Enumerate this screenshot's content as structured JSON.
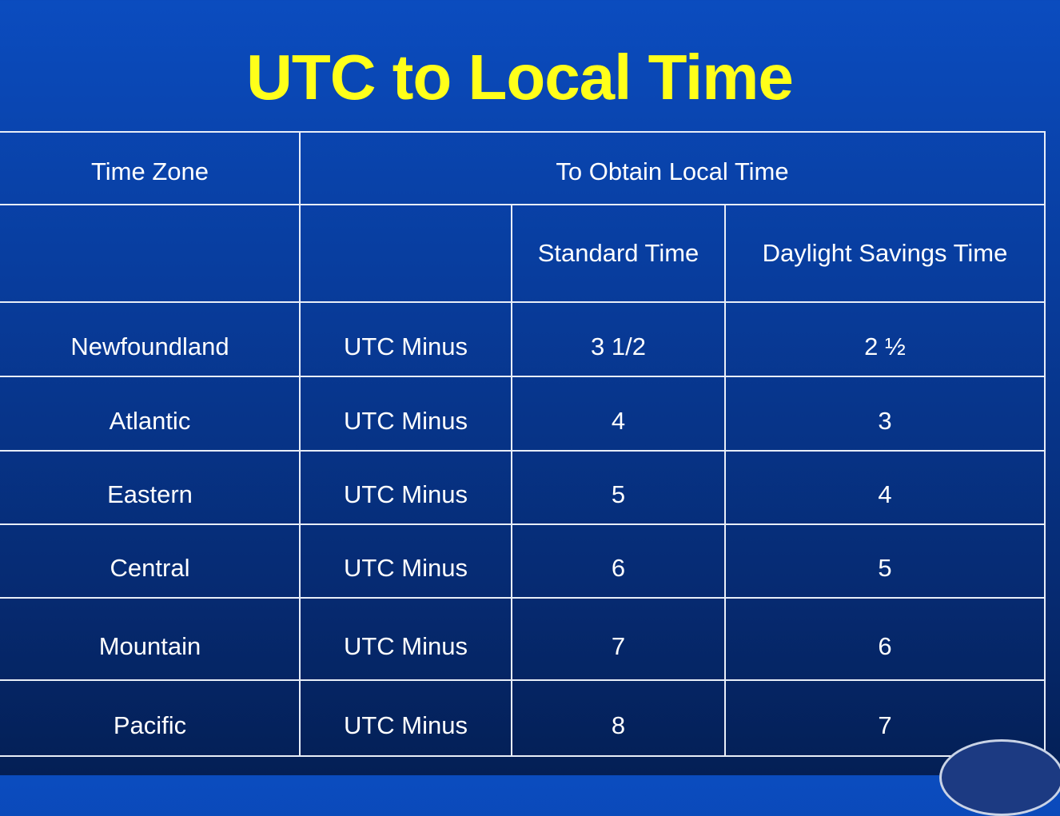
{
  "title": "UTC to Local Time",
  "table": {
    "header": [
      "Time Zone",
      "To Obtain Local Time"
    ],
    "subheader": [
      "Standard Time",
      "Daylight Savings Time"
    ],
    "rows": [
      [
        "Newfoundland",
        "UTC Minus",
        "3 1/2",
        "2 ½"
      ],
      [
        "Atlantic",
        "UTC Minus",
        "4",
        "3"
      ],
      [
        "Eastern",
        "UTC Minus",
        "5",
        "4"
      ],
      [
        "Central",
        "UTC Minus",
        "6",
        "5"
      ],
      [
        "Mountain",
        "UTC Minus",
        "7",
        "6"
      ],
      [
        "Pacific",
        "UTC Minus",
        "8",
        "7"
      ]
    ]
  }
}
